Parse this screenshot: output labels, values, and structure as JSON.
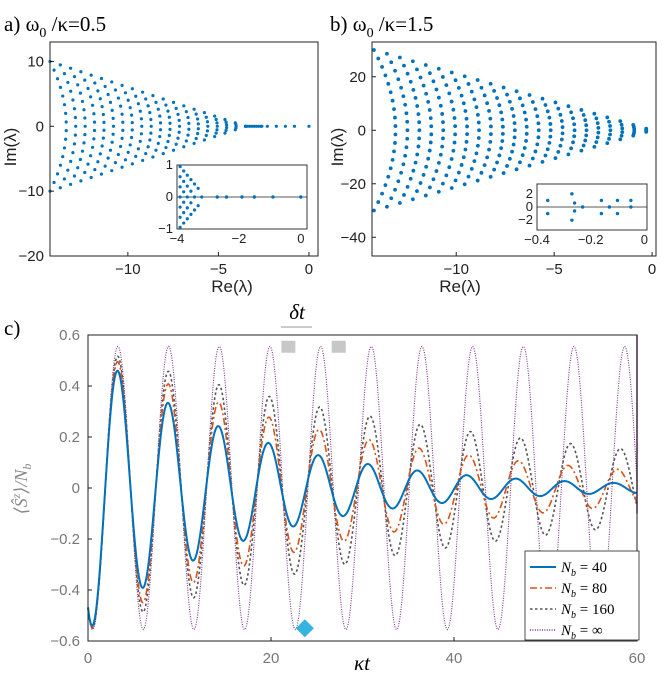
{
  "chart_data": [
    {
      "panel": "a",
      "type": "scatter",
      "title": "a) ω0 /κ=0.5",
      "title_parts": {
        "prefix": "a) ω",
        "sub": "0",
        "suffix": " /κ=0.5"
      },
      "xlabel": "Re(λ)",
      "ylabel": "Im(λ)",
      "xlim": [
        -14.3,
        0.5
      ],
      "ylim": [
        -20,
        13
      ],
      "xticks": [
        -10,
        -5,
        0
      ],
      "yticks": [
        -20,
        -10,
        0,
        10
      ],
      "color": "#0072BD",
      "eigenvalue_fan": {
        "apex_re": -3.5,
        "left_re": -14.3,
        "left_im": 10,
        "arcs": 20,
        "points_per_arc": 16
      },
      "isolated_points": [
        {
          "x": -2.6,
          "y": 0
        },
        {
          "x": -2.3,
          "y": 0
        },
        {
          "x": -1.8,
          "y": 0
        },
        {
          "x": -1.3,
          "y": 0
        },
        {
          "x": -0.8,
          "y": 0
        },
        {
          "x": 0,
          "y": 0
        }
      ],
      "inset": {
        "xlim": [
          -4,
          0.2
        ],
        "ylim": [
          -1,
          1
        ],
        "xticks": [
          -4,
          -2,
          0
        ],
        "yticks": [
          -1,
          0,
          1
        ],
        "cluster": {
          "re_min": -3.9,
          "re_max": -3.2,
          "im_max": 0.95
        },
        "real_points": [
          -2.7,
          -2.4,
          -1.9,
          -1.5,
          -0.9,
          0.0
        ]
      }
    },
    {
      "panel": "b",
      "type": "scatter",
      "title": "b) ω0 /κ=1.5",
      "title_parts": {
        "prefix": "b) ω",
        "sub": "0",
        "suffix": " /κ=1.5"
      },
      "xlabel": "Re(λ)",
      "ylabel": "Im(λ)",
      "xlim": [
        -14.3,
        0.2
      ],
      "ylim": [
        -47,
        33
      ],
      "xticks": [
        -10,
        -5,
        0
      ],
      "yticks": [
        -40,
        -20,
        0,
        20
      ],
      "color": "#0072BD",
      "eigenvalue_fan": {
        "apex_re": -0.3,
        "left_re": -14.2,
        "left_im": 30,
        "arcs": 22,
        "points_per_arc": 20
      },
      "inset": {
        "xlim": [
          -0.4,
          0.01
        ],
        "ylim": [
          -3.5,
          3.5
        ],
        "xticks": [
          -0.4,
          -0.2,
          0
        ],
        "yticks": [
          -2,
          0,
          2
        ],
        "points": [
          {
            "x": -0.36,
            "y": 1.0
          },
          {
            "x": -0.36,
            "y": -1.0
          },
          {
            "x": -0.27,
            "y": 2.0
          },
          {
            "x": -0.27,
            "y": -2.0
          },
          {
            "x": -0.26,
            "y": 0.6
          },
          {
            "x": -0.26,
            "y": -0.6
          },
          {
            "x": -0.23,
            "y": 0
          },
          {
            "x": -0.16,
            "y": 1.0
          },
          {
            "x": -0.16,
            "y": -1.0
          },
          {
            "x": -0.13,
            "y": 0
          },
          {
            "x": -0.1,
            "y": 1.0
          },
          {
            "x": -0.1,
            "y": -1.0
          },
          {
            "x": -0.05,
            "y": 1.0
          },
          {
            "x": -0.05,
            "y": 0
          }
        ]
      }
    },
    {
      "panel": "c",
      "type": "line",
      "title": "c)",
      "xlabel": "κt",
      "ylabel": "⟨Ŝᶻ⟩/N_b",
      "xlim": [
        0,
        60
      ],
      "ylim": [
        -0.6,
        0.6
      ],
      "xticks": [
        0,
        20,
        40,
        60
      ],
      "yticks": [
        -0.6,
        -0.4,
        -0.2,
        0,
        0.2,
        0.4,
        0.6
      ],
      "annotation": "δt",
      "model": {
        "A": 0.555,
        "omega": 1.1345,
        "phase": -1.5708,
        "t_min": 0.5
      },
      "series": [
        {
          "name": "N_b = 40",
          "legend_math": "40",
          "color": "#0072BD",
          "dash": "",
          "width": 2.0,
          "decay": 0.058,
          "chirp": 0.022
        },
        {
          "name": "N_b = 80",
          "legend_math": "80",
          "color": "#D95319",
          "dash": "7 3 2 3",
          "width": 1.6,
          "decay": 0.035,
          "chirp": 0.014
        },
        {
          "name": "N_b = 160",
          "legend_math": "160",
          "color": "#555555",
          "dash": "2.5 2.5",
          "width": 1.6,
          "decay": 0.022,
          "chirp": 0.008
        },
        {
          "name": "N_b = ∞",
          "legend_math": "∞",
          "color": "#7E2F8E",
          "dash": "1 1.4",
          "width": 1.1,
          "decay": 0.0,
          "chirp": 0.0
        }
      ],
      "markers": [
        {
          "shape": "square",
          "x": 21.9,
          "y": 0.55,
          "color": "#BDBDBD"
        },
        {
          "shape": "square",
          "x": 27.4,
          "y": 0.55,
          "color": "#BDBDBD"
        },
        {
          "shape": "diamond",
          "x": 23.7,
          "y": -0.55,
          "color": "#35B2E0"
        }
      ]
    }
  ]
}
